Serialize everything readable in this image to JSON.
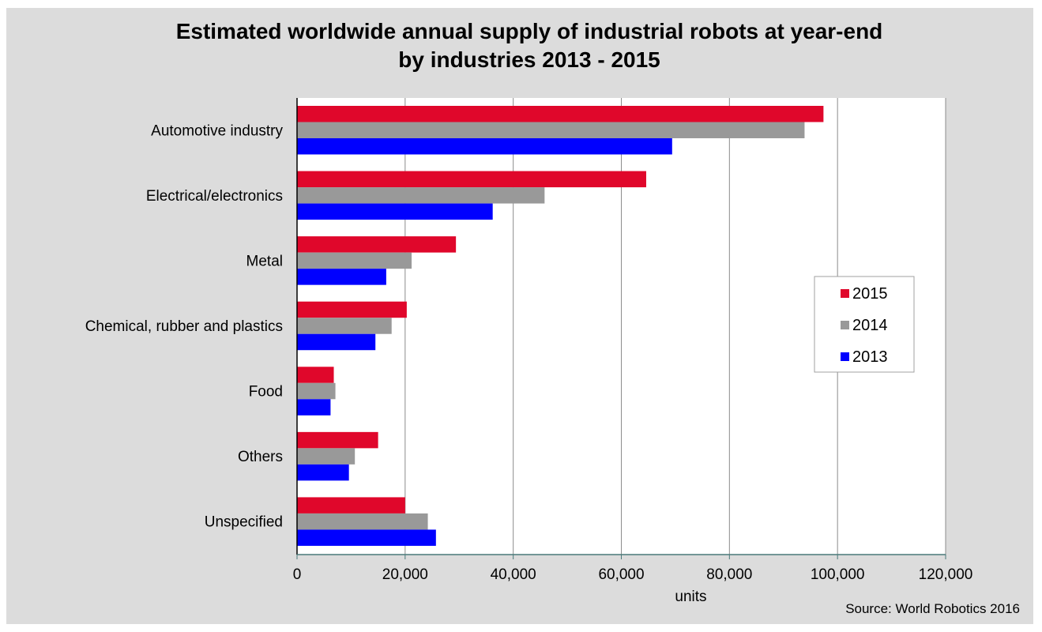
{
  "chart_data": {
    "type": "bar",
    "orientation": "horizontal",
    "title_lines": [
      "Estimated worldwide annual supply of industrial robots at year-end",
      "by industries 2013 - 2015"
    ],
    "categories": [
      "Automotive industry",
      "Electrical/electronics",
      "Metal",
      "Chemical, rubber and plastics",
      "Food",
      "Others",
      "Unspecified"
    ],
    "series": [
      {
        "name": "2015",
        "color": "#e0072b",
        "values": [
          97400,
          64600,
          29400,
          20300,
          6800,
          15000,
          20000
        ]
      },
      {
        "name": "2014",
        "color": "#999999",
        "values": [
          93900,
          45800,
          21200,
          17500,
          7100,
          10700,
          24200
        ]
      },
      {
        "name": "2013",
        "color": "#0000ff",
        "values": [
          69400,
          36200,
          16500,
          14500,
          6200,
          9600,
          25700
        ]
      }
    ],
    "xlabel": "units",
    "ylabel": "",
    "xlim": [
      0,
      120000
    ],
    "xticks": [
      0,
      20000,
      40000,
      60000,
      80000,
      100000,
      120000
    ],
    "xtick_labels": [
      "0",
      "20,000",
      "40,000",
      "60,000",
      "80,000",
      "100,000",
      "120,000"
    ],
    "grid": "vertical",
    "legend_position": "right",
    "source": "Source: World Robotics 2016"
  }
}
